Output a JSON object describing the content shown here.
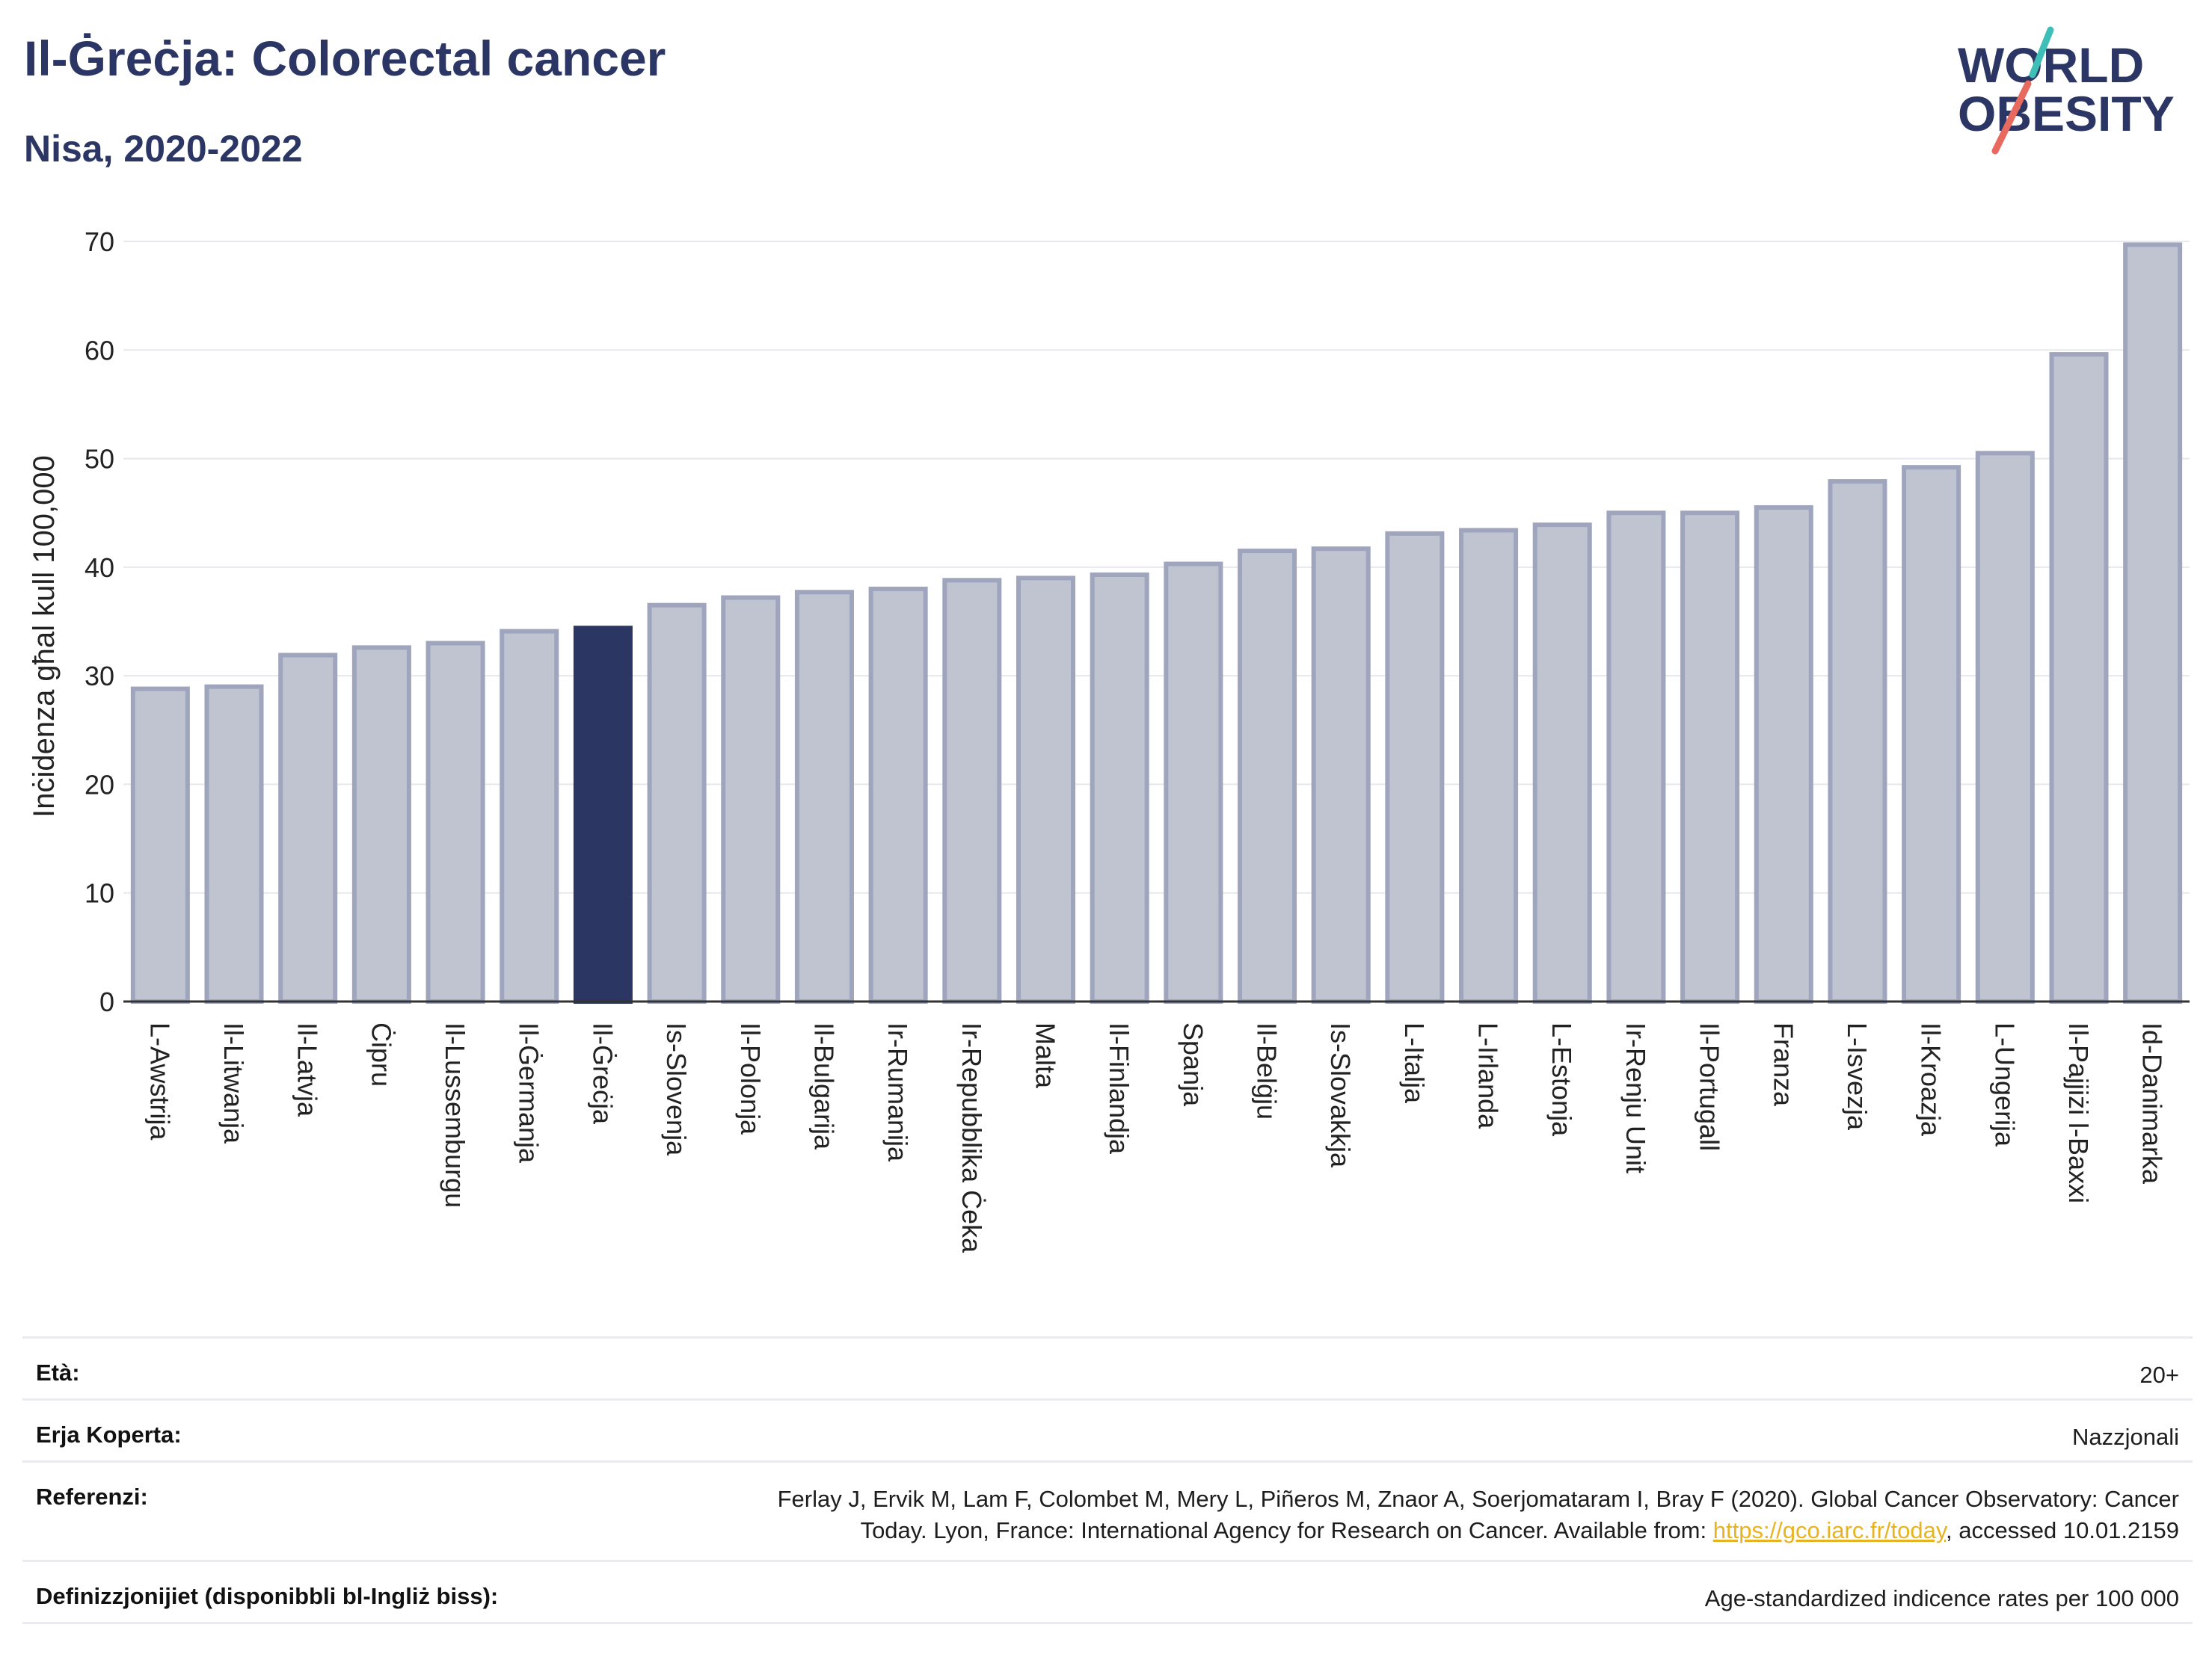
{
  "header": {
    "title": "Il-Ġreċja: Colorectal cancer",
    "subtitle": "Nisa, 2020-2022"
  },
  "logo": {
    "line1": "WORLD",
    "line2": "OBESITY",
    "colors": {
      "text": "#2c3665",
      "slash_teal": "#3dbfb8",
      "slash_coral": "#e86a5e"
    }
  },
  "chart_data": {
    "type": "bar",
    "ylabel": "Inċidenza għal kull 100,000",
    "ylim": [
      0,
      70
    ],
    "yticks": [
      0,
      10,
      20,
      30,
      40,
      50,
      60,
      70
    ],
    "grid": true,
    "highlight": "Il-Ġreċja",
    "colors": {
      "bar": "#c0c4d1",
      "bar_edge": "#9ea5bd",
      "highlight": "#2b3663",
      "grid": "#e6e8ee",
      "axis": "#333333"
    },
    "categories": [
      "L-Awstrija",
      "Il-Litwanja",
      "Il-Latvja",
      "Ċipru",
      "Il-Lussemburgu",
      "Il-Ġermanja",
      "Il-Ġreċja",
      "Is-Slovenja",
      "Il-Polonja",
      "Il-Bulgarija",
      "Ir-Rumanija",
      "Ir-Repubblika Ċeka",
      "Malta",
      "Il-Finlandja",
      "Spanja",
      "Il-Belġju",
      "Is-Slovakkja",
      "L-Italja",
      "L-Irlanda",
      "L-Estonja",
      "Ir-Renju Unit",
      "Il-Portugall",
      "Franza",
      "L-Isvezja",
      "Il-Kroazja",
      "L-Ungerija",
      "Il-Pajjiżi l-Baxxi",
      "Id-Danimarka"
    ],
    "values": [
      28.8,
      29.0,
      31.9,
      32.6,
      33.0,
      34.1,
      34.4,
      36.5,
      37.2,
      37.7,
      38.0,
      38.8,
      39.0,
      39.3,
      40.3,
      41.5,
      41.7,
      43.1,
      43.4,
      43.9,
      45.0,
      45.0,
      45.5,
      47.9,
      49.2,
      50.5,
      59.6,
      69.7
    ]
  },
  "info": {
    "age_label": "Età:",
    "age_value": "20+",
    "coverage_label": "Erja Koperta:",
    "coverage_value": "Nazzjonali",
    "refs_label": "Referenzi:",
    "refs_line1": "Ferlay J, Ervik M, Lam F, Colombet M, Mery L, Piñeros M, Znaor A, Soerjomataram I, Bray F (2020). Global Cancer Observatory: Cancer",
    "refs_line2_pre": "Today. Lyon, France: International Agency for Research on Cancer. Available from: ",
    "refs_link": "https://gco.iarc.fr/today",
    "refs_line2_post": ", accessed 10.01.2159",
    "defs_label": "Definizzjonijiet (disponibbli bl-Ingliż biss):",
    "defs_value": "Age-standardized indicence rates per 100 000"
  }
}
